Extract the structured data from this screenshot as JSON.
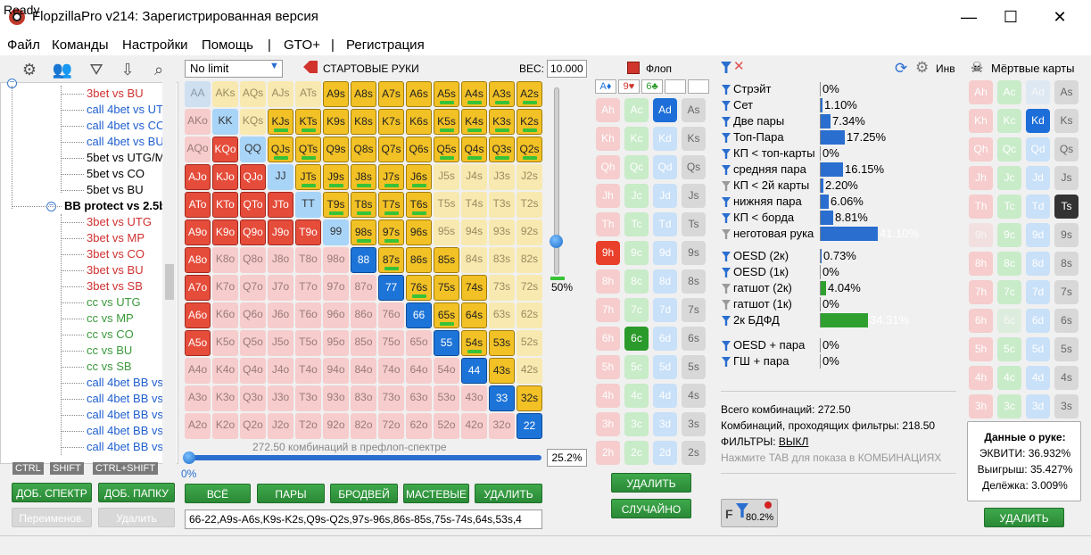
{
  "window": {
    "title": "FlopzillaPro v214: Зарегистрированная версия",
    "min": "—",
    "max": "☐",
    "close": "✕"
  },
  "menu": [
    "Файл",
    "Команды",
    "Настройки",
    "Помощь",
    "|",
    "GTO+",
    "|",
    "Регистрация"
  ],
  "status": "Ready",
  "tree": {
    "items": [
      {
        "label": "3bet vs BU",
        "color": "red"
      },
      {
        "label": "call 4bet vs UTG/",
        "color": "blue"
      },
      {
        "label": "call 4bet vs CO",
        "color": "blue"
      },
      {
        "label": "call 4bet vs BU",
        "color": "blue"
      },
      {
        "label": "5bet vs UTG/MP",
        "color": "black"
      },
      {
        "label": "5bet vs CO",
        "color": "black"
      },
      {
        "label": "5bet vs BU",
        "color": "black"
      },
      {
        "label": "BB protect vs 2.5bb",
        "color": "bold"
      },
      {
        "label": "3bet vs UTG",
        "color": "red"
      },
      {
        "label": "3bet vs MP",
        "color": "red"
      },
      {
        "label": "3bet vs CO",
        "color": "red"
      },
      {
        "label": "3bet vs BU",
        "color": "red"
      },
      {
        "label": "3bet vs SB",
        "color": "red"
      },
      {
        "label": "cc vs UTG",
        "color": "green"
      },
      {
        "label": "cc vs MP",
        "color": "green"
      },
      {
        "label": "cc vs CO",
        "color": "green"
      },
      {
        "label": "cc vs BU",
        "color": "green"
      },
      {
        "label": "cc vs SB",
        "color": "green"
      },
      {
        "label": "call 4bet BB vs U",
        "color": "blue"
      },
      {
        "label": "call 4bet BB vs M",
        "color": "blue"
      },
      {
        "label": "call 4bet BB vs C",
        "color": "blue"
      },
      {
        "label": "call 4bet BB vs B",
        "color": "blue"
      },
      {
        "label": "call 4bet BB vs S",
        "color": "blue"
      }
    ],
    "keys": [
      "CTRL",
      "SHIFT",
      "CTRL+SHIFT"
    ]
  },
  "left_buttons": {
    "add_range": "ДОБ. СПЕКТР",
    "add_folder": "ДОБ. ПАПКУ",
    "rename": "Переименов.",
    "delete": "Удалить"
  },
  "matrix": {
    "limit": "No limit",
    "start_hands": "СТАРТОВЫЕ РУКИ",
    "weight_label": "ВЕС:",
    "weight_value": "10.000",
    "rows": [
      [
        "AA",
        "AKs",
        "AQs",
        "AJs",
        "ATs",
        "A9s",
        "A8s",
        "A7s",
        "A6s",
        "A5s",
        "A4s",
        "A3s",
        "A2s"
      ],
      [
        "AKo",
        "KK",
        "KQs",
        "KJs",
        "KTs",
        "K9s",
        "K8s",
        "K7s",
        "K6s",
        "K5s",
        "K4s",
        "K3s",
        "K2s"
      ],
      [
        "AQo",
        "KQo",
        "QQ",
        "QJs",
        "QTs",
        "Q9s",
        "Q8s",
        "Q7s",
        "Q6s",
        "Q5s",
        "Q4s",
        "Q3s",
        "Q2s"
      ],
      [
        "AJo",
        "KJo",
        "QJo",
        "JJ",
        "JTs",
        "J9s",
        "J8s",
        "J7s",
        "J6s",
        "J5s",
        "J4s",
        "J3s",
        "J2s"
      ],
      [
        "ATo",
        "KTo",
        "QTo",
        "JTo",
        "TT",
        "T9s",
        "T8s",
        "T7s",
        "T6s",
        "T5s",
        "T4s",
        "T3s",
        "T2s"
      ],
      [
        "A9o",
        "K9o",
        "Q9o",
        "J9o",
        "T9o",
        "99",
        "98s",
        "97s",
        "96s",
        "95s",
        "94s",
        "93s",
        "92s"
      ],
      [
        "A8o",
        "K8o",
        "Q8o",
        "J8o",
        "T8o",
        "98o",
        "88",
        "87s",
        "86s",
        "85s",
        "84s",
        "83s",
        "82s"
      ],
      [
        "A7o",
        "K7o",
        "Q7o",
        "J7o",
        "T7o",
        "97o",
        "87o",
        "77",
        "76s",
        "75s",
        "74s",
        "73s",
        "72s"
      ],
      [
        "A6o",
        "K6o",
        "Q6o",
        "J6o",
        "T6o",
        "96o",
        "86o",
        "76o",
        "66",
        "65s",
        "64s",
        "63s",
        "62s"
      ],
      [
        "A5o",
        "K5o",
        "Q5o",
        "J5o",
        "T5o",
        "95o",
        "85o",
        "75o",
        "65o",
        "55",
        "54s",
        "53s",
        "52s"
      ],
      [
        "A4o",
        "K4o",
        "Q4o",
        "J4o",
        "T4o",
        "94o",
        "84o",
        "74o",
        "64o",
        "54o",
        "44",
        "43s",
        "42s"
      ],
      [
        "A3o",
        "K3o",
        "Q3o",
        "J3o",
        "T3o",
        "93o",
        "83o",
        "73o",
        "63o",
        "53o",
        "43o",
        "33",
        "32s"
      ],
      [
        "A2o",
        "K2o",
        "Q2o",
        "J2o",
        "T2o",
        "92o",
        "82o",
        "72o",
        "62o",
        "52o",
        "42o",
        "32o",
        "22"
      ]
    ],
    "selected": [
      "A9s",
      "A8s",
      "A7s",
      "A6s",
      "A5s",
      "A4s",
      "A3s",
      "A2s",
      "KJs",
      "KTs",
      "K9s",
      "K8s",
      "K7s",
      "K6s",
      "K5s",
      "K4s",
      "K3s",
      "K2s",
      "KQo",
      "QJs",
      "QTs",
      "Q9s",
      "Q8s",
      "Q7s",
      "Q6s",
      "Q5s",
      "Q4s",
      "Q3s",
      "Q2s",
      "AJo",
      "KJo",
      "QJo",
      "JTs",
      "J9s",
      "J8s",
      "J7s",
      "J6s",
      "ATo",
      "KTo",
      "QTo",
      "JTo",
      "T9s",
      "T8s",
      "T7s",
      "T6s",
      "A9o",
      "K9o",
      "Q9o",
      "J9o",
      "T9o",
      "98s",
      "97s",
      "96s",
      "A8o",
      "88",
      "87s",
      "86s",
      "85s",
      "A7o",
      "77",
      "76s",
      "75s",
      "74s",
      "A6o",
      "66",
      "65s",
      "64s",
      "A5o",
      "55",
      "54s",
      "53s",
      "44",
      "43s",
      "33",
      "32s",
      "22"
    ],
    "light": [
      "KK",
      "QQ",
      "JJ",
      "TT",
      "99"
    ],
    "bars": [
      "A5s",
      "A4s",
      "A3s",
      "A2s",
      "KJs",
      "KTs",
      "K5s",
      "K4s",
      "K3s",
      "K2s",
      "QJs",
      "QTs",
      "Q5s",
      "Q4s",
      "Q3s",
      "Q2s",
      "JTs",
      "J9s",
      "J8s",
      "J7s",
      "J6s",
      "T9s",
      "T8s",
      "T7s",
      "T6s",
      "98s",
      "97s",
      "87s",
      "76s",
      "65s",
      "54s"
    ],
    "vslider_pct": "50%",
    "combo_caption": "272.50 комбинаций в префлоп-спектре",
    "hslider_pct": "0%",
    "range_pct": "25.2%",
    "range_text": "66-22,A9s-A6s,K9s-K2s,Q9s-Q2s,97s-96s,86s-85s,75s-74s,64s,53s,4",
    "buttons": [
      "ВСЁ",
      "ПАРЫ",
      "БРОДВЕЙ",
      "МАСТЕВЫЕ",
      "УДАЛИТЬ"
    ]
  },
  "board": {
    "label": "Флоп",
    "slots": [
      "A♦",
      "9♥",
      "6♣",
      "",
      ""
    ],
    "ranks": [
      "A",
      "K",
      "Q",
      "J",
      "T",
      "9",
      "8",
      "7",
      "6",
      "5",
      "4",
      "3",
      "2"
    ],
    "suits": [
      "h",
      "c",
      "d",
      "s"
    ],
    "selected": [
      "Ad",
      "9h",
      "6c"
    ],
    "delete": "УДАЛИТЬ",
    "random": "СЛУЧАЙНО"
  },
  "filters": {
    "inv_label": "Инв",
    "group1": [
      {
        "label": "Стрэйт",
        "value": "0%",
        "pct": 0,
        "icon": "blue",
        "color": "#2a6ed0"
      },
      {
        "label": "Сет",
        "value": "1.10%",
        "pct": 1.1,
        "icon": "blue",
        "color": "#2a6ed0"
      },
      {
        "label": "Две пары",
        "value": "7.34%",
        "pct": 7.34,
        "icon": "blue",
        "color": "#2a6ed0"
      },
      {
        "label": "Топ-Пара",
        "value": "17.25%",
        "pct": 17.25,
        "icon": "blue",
        "color": "#2a6ed0"
      },
      {
        "label": "КП < топ-карты",
        "value": "0%",
        "pct": 0,
        "icon": "blue",
        "color": "#2a6ed0"
      },
      {
        "label": "средняя пара",
        "value": "16.15%",
        "pct": 16.15,
        "icon": "blue",
        "color": "#2a6ed0"
      },
      {
        "label": "КП < 2й карты",
        "value": "2.20%",
        "pct": 2.2,
        "icon": "gray",
        "color": "#2a6ed0"
      },
      {
        "label": "нижняя пара",
        "value": "6.06%",
        "pct": 6.06,
        "icon": "blue",
        "color": "#2a6ed0"
      },
      {
        "label": "КП < борда",
        "value": "8.81%",
        "pct": 8.81,
        "icon": "blue",
        "color": "#2a6ed0"
      },
      {
        "label": "неготовая рука",
        "value": "41.10%",
        "pct": 41.1,
        "icon": "gray",
        "color": "#2a6ed0"
      }
    ],
    "group2": [
      {
        "label": "OESD (2к)",
        "value": "0.73%",
        "pct": 0.73,
        "icon": "blue",
        "color": "#2a6ed0"
      },
      {
        "label": "OESD (1к)",
        "value": "0%",
        "pct": 0,
        "icon": "blue",
        "color": "#2a6ed0"
      },
      {
        "label": "гатшот (2к)",
        "value": "4.04%",
        "pct": 4.04,
        "icon": "gray",
        "color": "#2fa02f"
      },
      {
        "label": "гатшот (1к)",
        "value": "0%",
        "pct": 0,
        "icon": "gray",
        "color": "#2fa02f"
      },
      {
        "label": "2к БДФД",
        "value": "34.31%",
        "pct": 34.31,
        "icon": "blue",
        "color": "#2fa02f"
      }
    ],
    "group3": [
      {
        "label": "OESD + пара",
        "value": "0%",
        "pct": 0,
        "icon": "blue",
        "color": "#2a6ed0"
      },
      {
        "label": "ГШ + пара",
        "value": "0%",
        "pct": 0,
        "icon": "blue",
        "color": "#2a6ed0"
      }
    ],
    "total": "Всего комбинаций: 272.50",
    "passing": "Комбинаций, проходящих фильтры: 218.50",
    "filters_prefix": "ФИЛЬТРЫ: ",
    "filters_state": "ВЫКЛ",
    "tab_hint": "Нажмите TAB для показа в КОМБИНАЦИЯХ",
    "filter_pct": "80.2%"
  },
  "dead": {
    "label": "Мёртвые карты",
    "selected": [
      "Kd",
      "Ts"
    ],
    "faded": [
      "Ad",
      "9h",
      "6c"
    ],
    "hand_title": "Данные о руке:",
    "equity": "ЭКВИТИ: 36.932%",
    "win": "Выигрыш: 35.427%",
    "tie": "Делёжка: 3.009%",
    "delete": "УДАЛИТЬ"
  }
}
